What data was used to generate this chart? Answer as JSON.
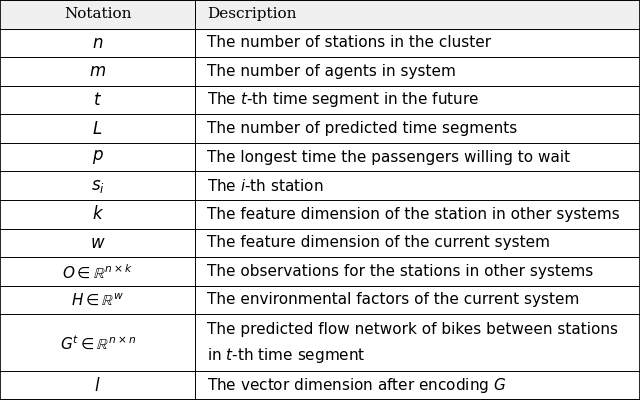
{
  "header": [
    "Notation",
    "Description"
  ],
  "rows": [
    [
      "n",
      "The number of stations in the cluster"
    ],
    [
      "m",
      "The number of agents in system"
    ],
    [
      "t",
      "The t-th time segment in the future"
    ],
    [
      "L",
      "The number of predicted time segments"
    ],
    [
      "p",
      "The longest time the passengers willing to wait"
    ],
    [
      "s_i",
      "The i-th station"
    ],
    [
      "k",
      "The feature dimension of the station in other systems"
    ],
    [
      "w",
      "The feature dimension of the current system"
    ],
    [
      "O_nk",
      "The observations for the stations in other systems"
    ],
    [
      "H_w",
      "The environmental factors of the current system"
    ],
    [
      "G_nn",
      "The predicted flow network of bikes between stations"
    ],
    [
      "l",
      "The vector dimension after encoding G"
    ]
  ],
  "col_split": 0.305,
  "bg_color": "#ffffff",
  "line_color": "#000000",
  "font_size": 11.0,
  "header_bg": "#f0f0f0"
}
